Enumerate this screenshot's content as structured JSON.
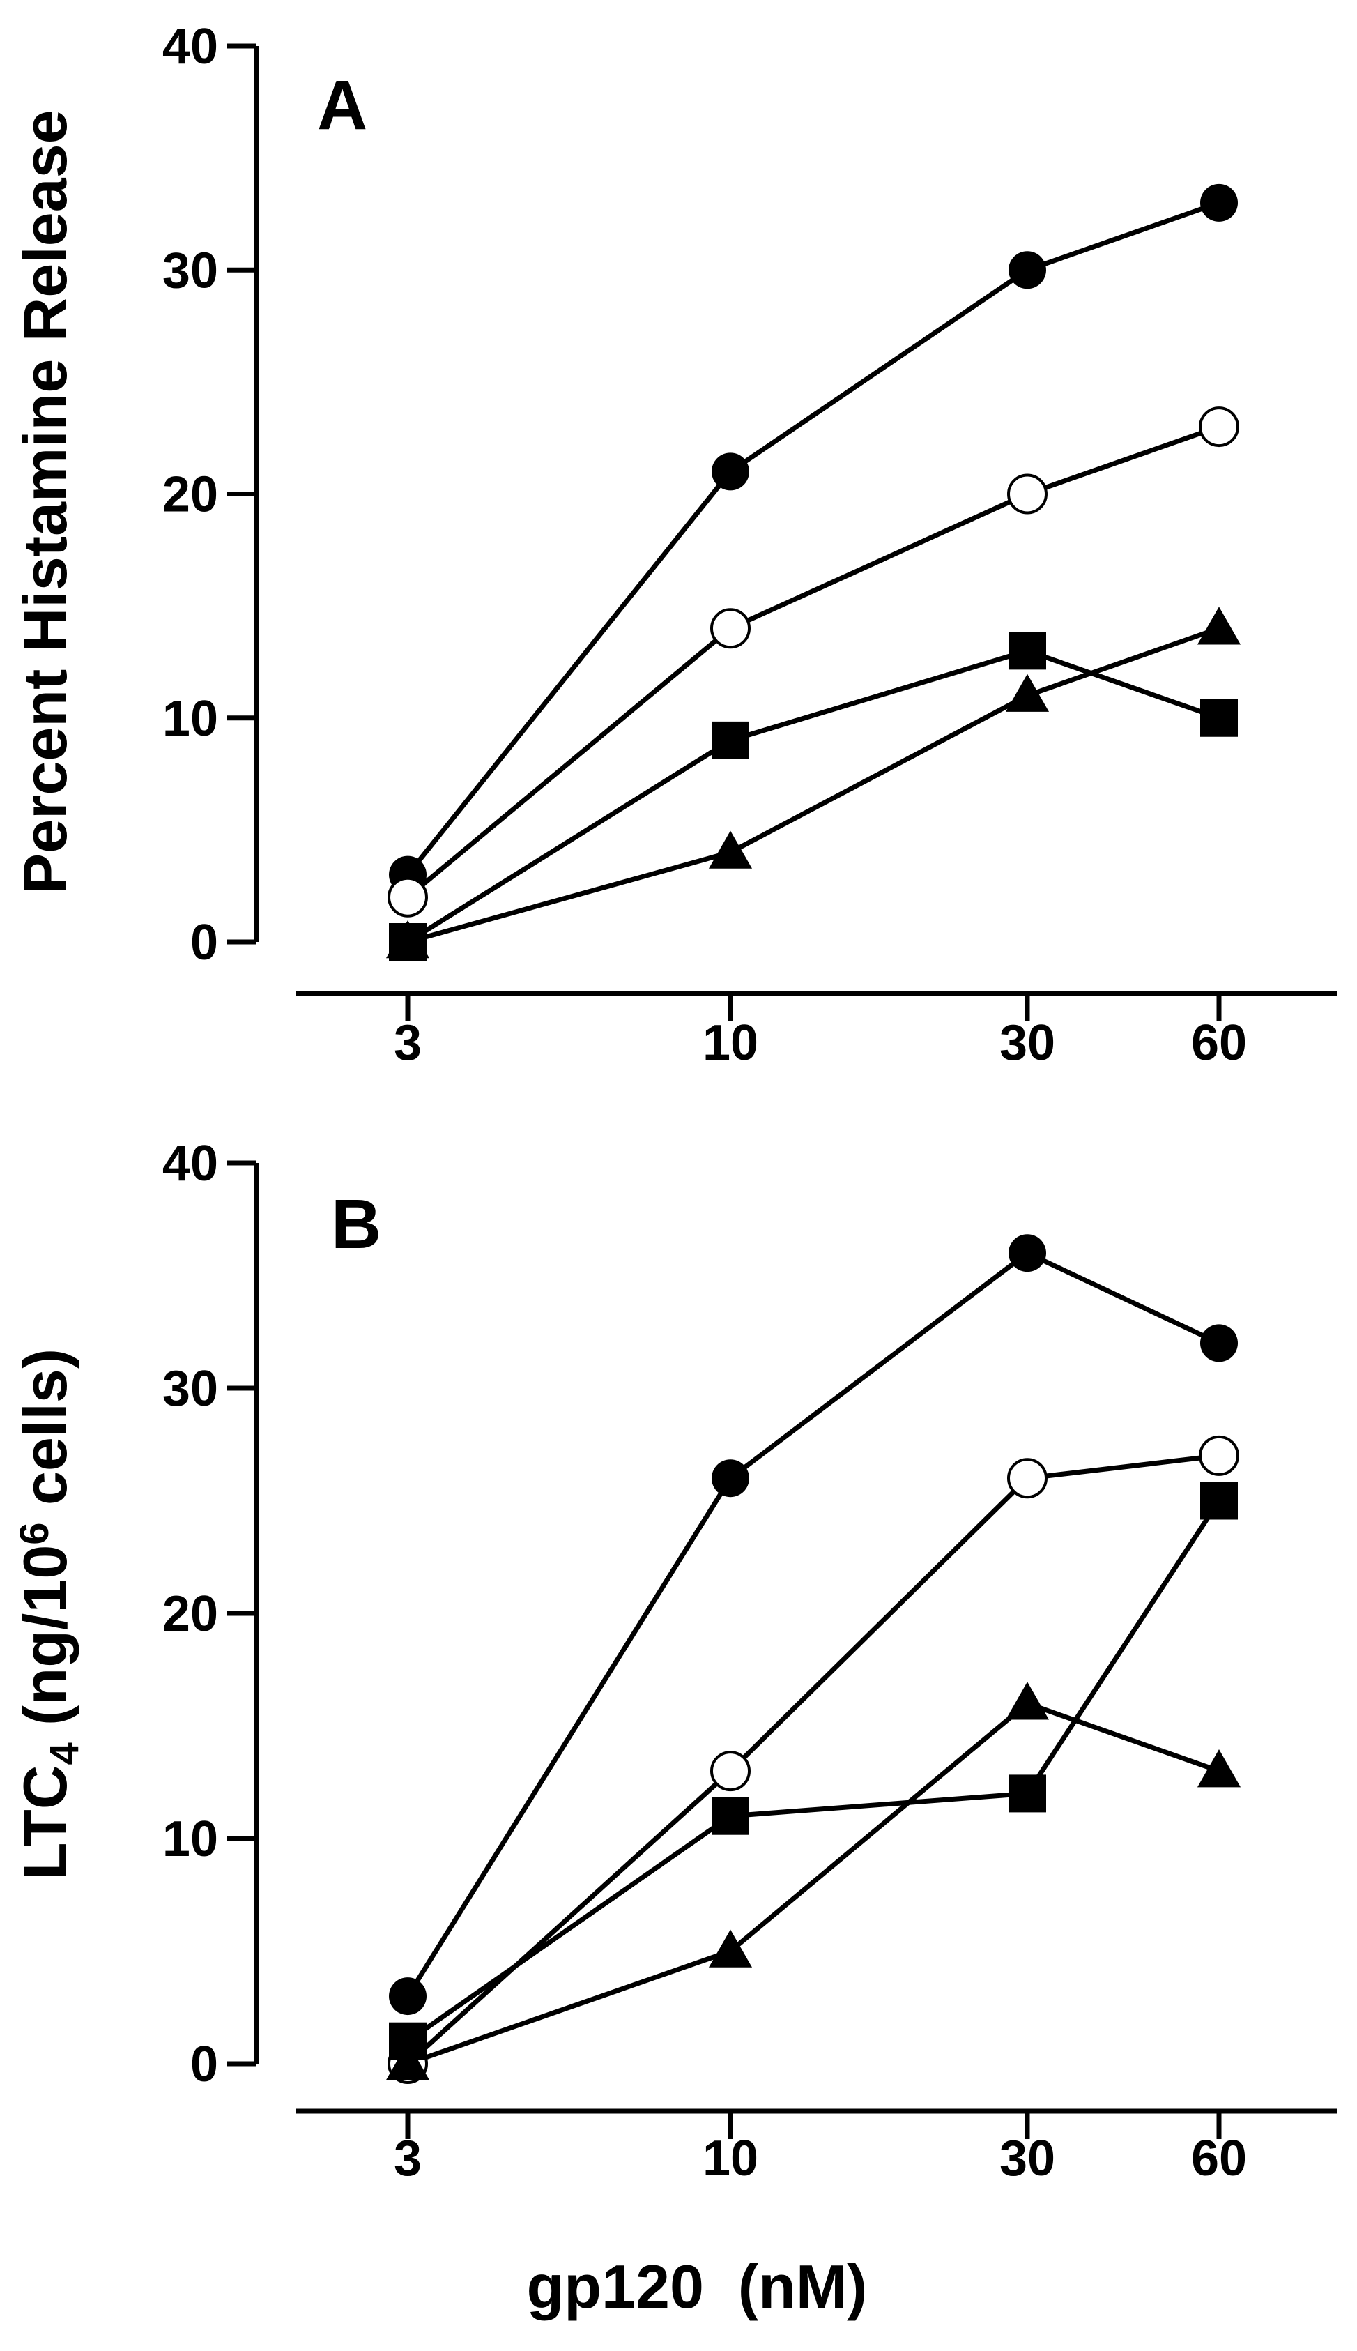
{
  "figure": {
    "xlabel": "gp120  (nM)"
  },
  "chart_data": [
    {
      "panel": "A",
      "type": "line",
      "panel_label": "A",
      "ylabel": "Percent  Histamine  Release",
      "ylabel_parts": [],
      "xlabel": "gp120  (nM)",
      "x_scale": "categorical-log",
      "categories": [
        "3",
        "10",
        "30",
        "60"
      ],
      "x": [
        3,
        10,
        30,
        60
      ],
      "ylim": [
        0,
        40
      ],
      "yticks": [
        0,
        10,
        20,
        30,
        40
      ],
      "ytick_labels": [
        "0",
        "10",
        "20",
        "30",
        "40"
      ],
      "grid": false,
      "series": [
        {
          "name": "filled circle",
          "marker": "filled-circle",
          "values": [
            3,
            21,
            30,
            33
          ]
        },
        {
          "name": "open circle",
          "marker": "open-circle",
          "values": [
            2,
            14,
            20,
            23
          ]
        },
        {
          "name": "filled square",
          "marker": "filled-square",
          "values": [
            0,
            9,
            13,
            10
          ]
        },
        {
          "name": "filled triangle",
          "marker": "filled-triangle",
          "values": [
            0,
            4,
            11,
            14
          ]
        }
      ]
    },
    {
      "panel": "B",
      "type": "line",
      "panel_label": "B",
      "ylabel": "LTC4 (ng/10^6 cells)",
      "ylabel_parts": [
        {
          "text": "LTC",
          "kind": "normal"
        },
        {
          "text": "4",
          "kind": "sub"
        },
        {
          "text": " (ng/10",
          "kind": "normal"
        },
        {
          "text": "6",
          "kind": "sup"
        },
        {
          "text": " cells)",
          "kind": "normal"
        }
      ],
      "xlabel": "gp120  (nM)",
      "x_scale": "categorical-log",
      "categories": [
        "3",
        "10",
        "30",
        "60"
      ],
      "x": [
        3,
        10,
        30,
        60
      ],
      "ylim": [
        0,
        40
      ],
      "yticks": [
        0,
        10,
        20,
        30,
        40
      ],
      "ytick_labels": [
        "0",
        "10",
        "20",
        "30",
        "40"
      ],
      "grid": false,
      "series": [
        {
          "name": "filled circle",
          "marker": "filled-circle",
          "values": [
            3,
            26,
            36,
            32
          ]
        },
        {
          "name": "open circle",
          "marker": "open-circle",
          "values": [
            0,
            13,
            26,
            27
          ]
        },
        {
          "name": "filled square",
          "marker": "filled-square",
          "values": [
            1,
            11,
            12,
            25
          ]
        },
        {
          "name": "filled triangle",
          "marker": "filled-triangle",
          "values": [
            0,
            5,
            16,
            13
          ]
        }
      ]
    }
  ]
}
